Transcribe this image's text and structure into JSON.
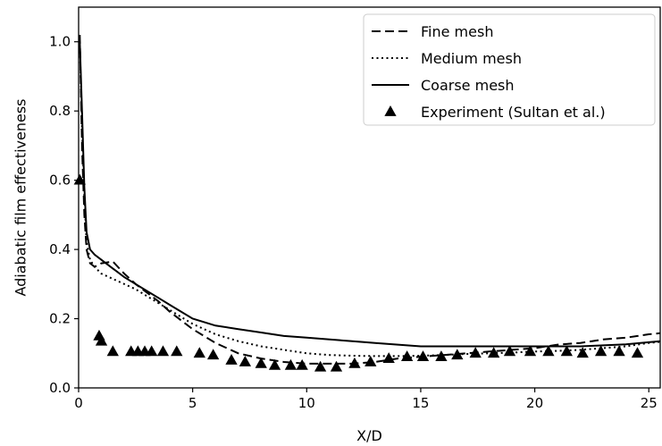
{
  "chart_data": {
    "type": "line",
    "xlabel": "X/D",
    "ylabel": "Adiabatic film effectiveness",
    "xlim": [
      0,
      25.5
    ],
    "ylim": [
      0,
      1.1
    ],
    "xticks": [
      0,
      5,
      10,
      15,
      20,
      25
    ],
    "yticks": [
      0.0,
      0.2,
      0.4,
      0.6,
      0.8,
      1.0
    ],
    "xtick_labels": [
      "0",
      "5",
      "10",
      "15",
      "20",
      "25"
    ],
    "ytick_labels": [
      "0.0",
      "0.2",
      "0.4",
      "0.6",
      "0.8",
      "1.0"
    ],
    "grid": false,
    "legend_position": "top-right",
    "series": [
      {
        "name": "Fine mesh",
        "style": "dashed",
        "color": "#000000",
        "x": [
          0.05,
          0.15,
          0.25,
          0.35,
          0.5,
          0.7,
          1.0,
          1.5,
          2.0,
          2.5,
          3.0,
          3.5,
          4.0,
          5.0,
          6.0,
          7.0,
          8.0,
          9.0,
          10.0,
          11.0,
          12.0,
          13.0,
          14.0,
          15.0,
          16.0,
          17.0,
          18.0,
          19.0,
          20.0,
          21.0,
          22.0,
          23.0,
          24.0,
          25.0,
          25.5
        ],
        "y": [
          1.02,
          0.7,
          0.5,
          0.4,
          0.36,
          0.35,
          0.36,
          0.365,
          0.33,
          0.3,
          0.275,
          0.25,
          0.22,
          0.17,
          0.13,
          0.1,
          0.085,
          0.075,
          0.07,
          0.07,
          0.07,
          0.075,
          0.085,
          0.09,
          0.095,
          0.1,
          0.105,
          0.11,
          0.115,
          0.125,
          0.13,
          0.14,
          0.145,
          0.155,
          0.158
        ]
      },
      {
        "name": "Medium mesh",
        "style": "dotted",
        "color": "#000000",
        "x": [
          0.05,
          0.15,
          0.25,
          0.35,
          0.5,
          0.7,
          1.0,
          1.5,
          2.0,
          2.5,
          3.0,
          3.5,
          4.0,
          5.0,
          6.0,
          7.0,
          8.0,
          9.0,
          10.0,
          11.0,
          12.0,
          13.0,
          14.0,
          15.0,
          16.0,
          17.0,
          18.0,
          19.0,
          20.0,
          21.0,
          22.0,
          23.0,
          24.0,
          25.0,
          25.5
        ],
        "y": [
          1.0,
          0.75,
          0.55,
          0.42,
          0.37,
          0.35,
          0.33,
          0.315,
          0.3,
          0.285,
          0.265,
          0.245,
          0.225,
          0.185,
          0.155,
          0.135,
          0.12,
          0.11,
          0.1,
          0.095,
          0.093,
          0.092,
          0.092,
          0.093,
          0.095,
          0.098,
          0.1,
          0.102,
          0.105,
          0.107,
          0.11,
          0.115,
          0.12,
          0.13,
          0.133
        ]
      },
      {
        "name": "Coarse mesh",
        "style": "solid",
        "color": "#000000",
        "x": [
          0.05,
          0.15,
          0.25,
          0.35,
          0.5,
          0.7,
          1.0,
          1.5,
          2.0,
          2.5,
          3.0,
          3.5,
          4.0,
          5.0,
          6.0,
          7.0,
          8.0,
          9.0,
          10.0,
          11.0,
          12.0,
          13.0,
          14.0,
          15.0,
          16.0,
          17.0,
          18.0,
          19.0,
          20.0,
          21.0,
          22.0,
          23.0,
          24.0,
          25.0,
          25.5
        ],
        "y": [
          1.0,
          0.8,
          0.58,
          0.45,
          0.4,
          0.385,
          0.37,
          0.345,
          0.32,
          0.3,
          0.28,
          0.26,
          0.24,
          0.2,
          0.18,
          0.17,
          0.16,
          0.15,
          0.145,
          0.14,
          0.135,
          0.13,
          0.125,
          0.12,
          0.12,
          0.12,
          0.12,
          0.12,
          0.12,
          0.12,
          0.12,
          0.123,
          0.126,
          0.132,
          0.135
        ]
      },
      {
        "name": "Experiment (Sultan et al.)",
        "style": "triangle-markers",
        "color": "#000000",
        "x": [
          0.05,
          0.9,
          1.0,
          1.5,
          2.3,
          2.6,
          2.9,
          3.2,
          3.7,
          4.3,
          5.3,
          5.9,
          6.7,
          7.3,
          8.0,
          8.6,
          9.3,
          9.8,
          10.6,
          11.3,
          12.1,
          12.8,
          13.6,
          14.4,
          15.1,
          15.9,
          16.6,
          17.4,
          18.2,
          18.9,
          19.8,
          20.6,
          21.4,
          22.1,
          22.9,
          23.7,
          24.5
        ],
        "y": [
          0.6,
          0.15,
          0.135,
          0.105,
          0.105,
          0.105,
          0.105,
          0.105,
          0.105,
          0.105,
          0.1,
          0.095,
          0.08,
          0.075,
          0.07,
          0.065,
          0.065,
          0.065,
          0.06,
          0.06,
          0.07,
          0.075,
          0.085,
          0.09,
          0.09,
          0.09,
          0.095,
          0.1,
          0.1,
          0.105,
          0.105,
          0.105,
          0.105,
          0.1,
          0.105,
          0.105,
          0.1
        ]
      }
    ]
  }
}
